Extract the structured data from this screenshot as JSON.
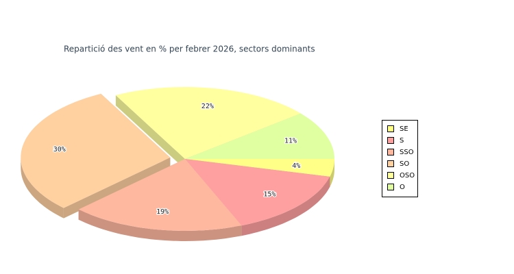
{
  "chart_data": {
    "type": "pie3d",
    "title": "Repartició des vent en % per febrer 2026, sectors dominants",
    "categories": [
      "SE",
      "S",
      "SSO",
      "SO",
      "OSO",
      "O"
    ],
    "values": [
      4,
      15,
      19,
      30,
      22,
      11
    ],
    "value_labels": [
      "4%",
      "15%",
      "19%",
      "30%",
      "22%",
      "11%"
    ],
    "colors": [
      "#ffff88",
      "#ffa0a0",
      "#ffb8a0",
      "#ffd0a0",
      "#ffffa0",
      "#e0ffa0"
    ],
    "exploded": "SO",
    "legend": "right"
  }
}
